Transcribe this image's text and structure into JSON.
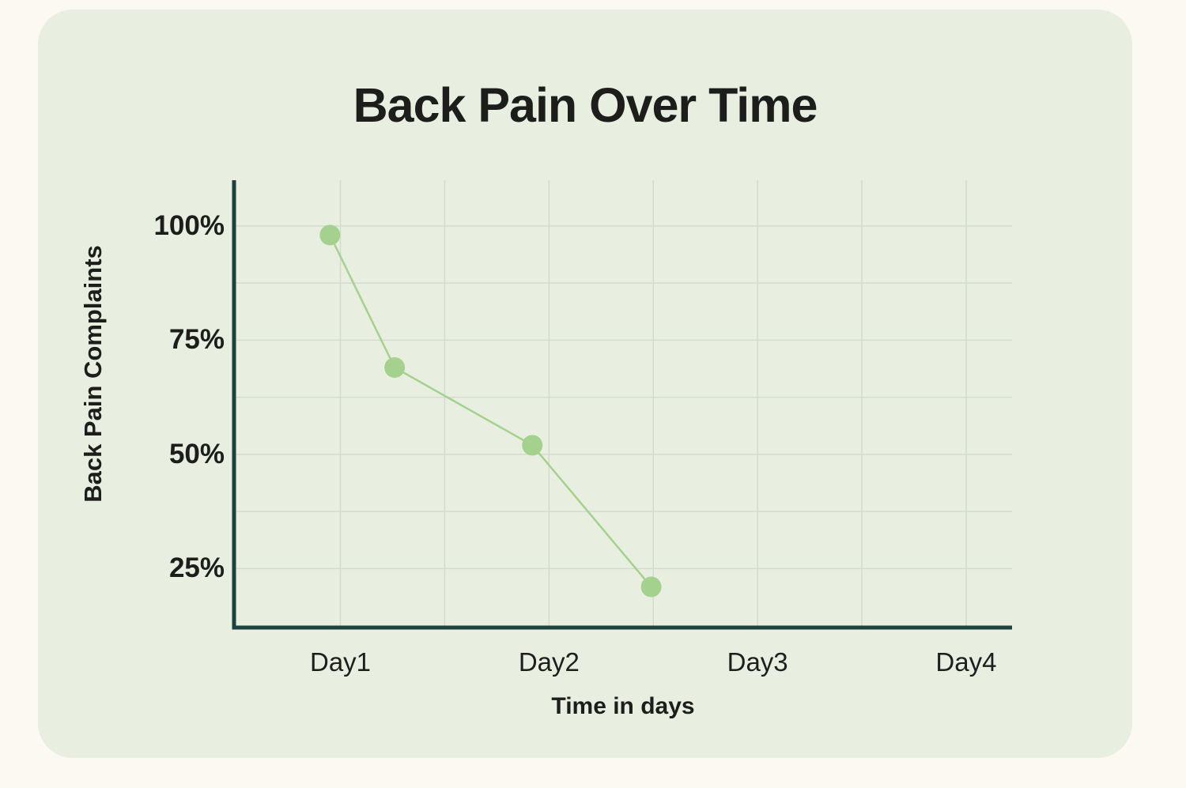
{
  "chart_data": {
    "type": "line",
    "title": "Back Pain Over Time",
    "xlabel": "Time in days",
    "ylabel": "Back Pain Complaints",
    "x_ticks": [
      {
        "label": "Day1",
        "day": 1
      },
      {
        "label": "Day2",
        "day": 2
      },
      {
        "label": "Day3",
        "day": 3
      },
      {
        "label": "Day4",
        "day": 4
      }
    ],
    "y_ticks": [
      {
        "label": "100%",
        "percent": 100
      },
      {
        "label": "75%",
        "percent": 75
      },
      {
        "label": "50%",
        "percent": 50
      },
      {
        "label": "25%",
        "percent": 25
      }
    ],
    "x_domain_days": [
      0.49,
      4.22
    ],
    "y_domain_percent": [
      12.1,
      110.0
    ],
    "x_grid_days": [
      1,
      1.5,
      2,
      2.5,
      3,
      3.5,
      4
    ],
    "y_grid_percent": [
      100,
      87.5,
      75,
      62.5,
      50,
      37.5,
      25
    ],
    "grid_on": true,
    "legend": "none",
    "series": [
      {
        "name": "Back Pain Complaints",
        "color": "#a5d18e",
        "points": [
          {
            "day": 0.95,
            "percent": 98
          },
          {
            "day": 1.26,
            "percent": 69
          },
          {
            "day": 1.92,
            "percent": 52
          },
          {
            "day": 2.49,
            "percent": 21
          }
        ]
      }
    ],
    "colors": {
      "axis": "#1b423e",
      "grid": "#d3dbce",
      "title_text": "#1d1d1b",
      "tick_text": "#1e1e1e",
      "card_background": "#e8efe1",
      "page_background": "#fbf9f1"
    }
  }
}
